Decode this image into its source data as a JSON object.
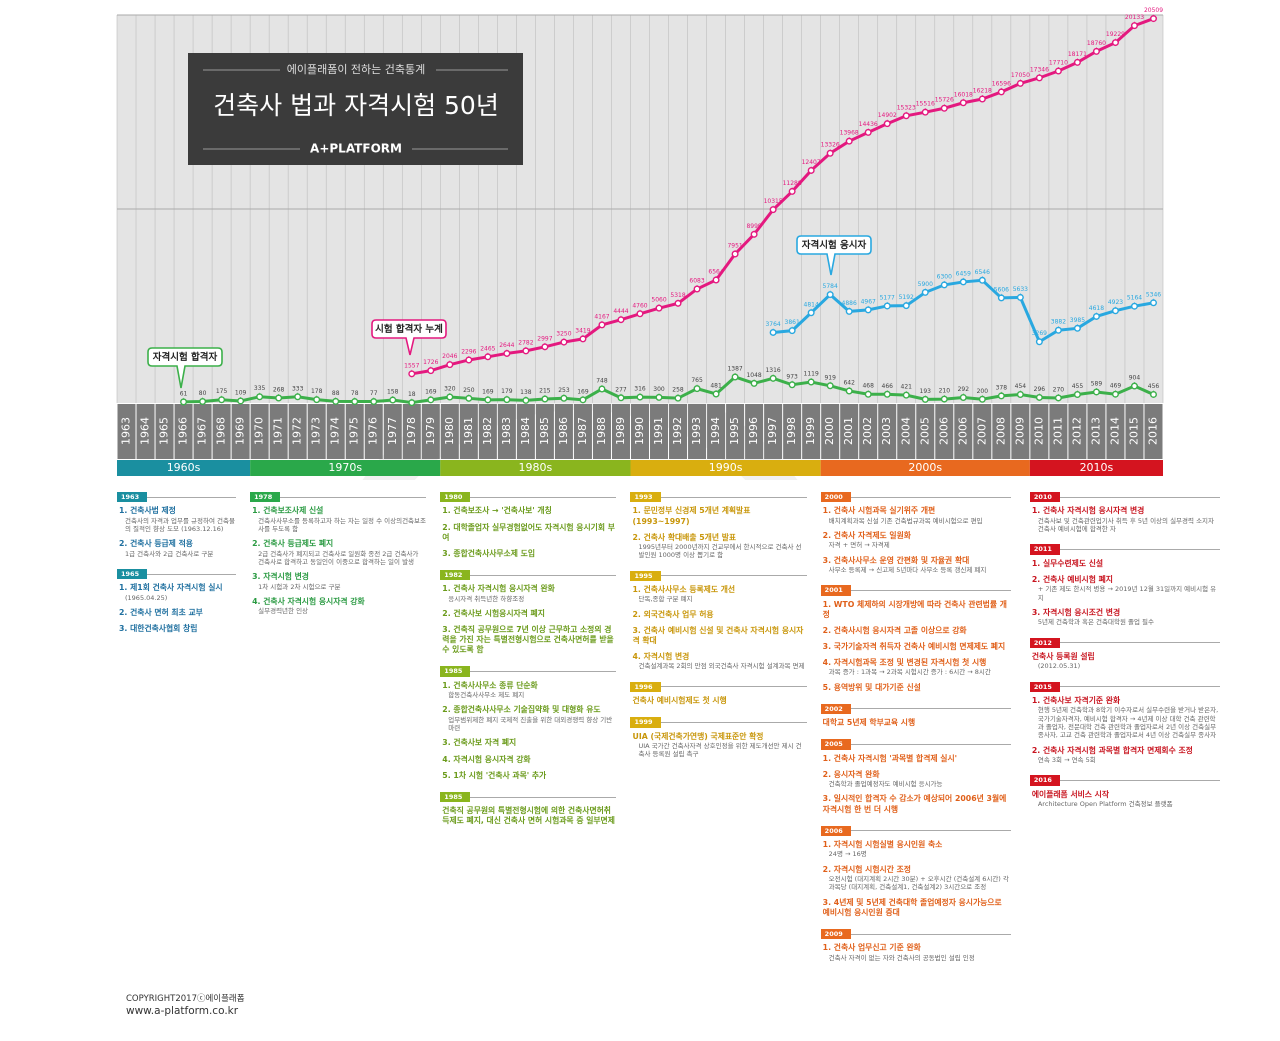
{
  "header": {
    "kicker": "에이플래폼이 전하는 건축통계",
    "title": "건축사 법과 자격시험 50년",
    "brand": "A+PLATFORM"
  },
  "chart_data": {
    "type": "line",
    "categories": [
      "1963",
      "1964",
      "1965",
      "1966",
      "1967",
      "1968",
      "1969",
      "1970",
      "1971",
      "1972",
      "1973",
      "1974",
      "1975",
      "1976",
      "1977",
      "1978",
      "1979",
      "1980",
      "1981",
      "1982",
      "1983",
      "1984",
      "1985",
      "1986",
      "1987",
      "1988",
      "1989",
      "1990",
      "1991",
      "1992",
      "1993",
      "1994",
      "1995",
      "1996",
      "1997",
      "1998",
      "1999",
      "2000",
      "2001",
      "2002",
      "2003",
      "2004",
      "2005",
      "2006",
      "2006",
      "2007",
      "2008",
      "2009",
      "2010",
      "2011",
      "2012",
      "2013",
      "2014",
      "2015",
      "2016"
    ],
    "series": [
      {
        "name": "자격시험 합격자",
        "color": "#3cb04a",
        "values": [
          null,
          null,
          null,
          61,
          80,
          175,
          109,
          335,
          268,
          333,
          178,
          88,
          78,
          77,
          158,
          18,
          169,
          320,
          250,
          169,
          179,
          138,
          215,
          253,
          169,
          748,
          277,
          316,
          300,
          258,
          765,
          481,
          1387,
          1048,
          1316,
          973,
          1119,
          919,
          642,
          468,
          466,
          421,
          193,
          210,
          292,
          200,
          378,
          454,
          296,
          270,
          455,
          589,
          469,
          904,
          456
        ]
      },
      {
        "name": "시험 합격자 누계",
        "color": "#e4197f",
        "values": [
          null,
          null,
          null,
          null,
          null,
          null,
          null,
          null,
          null,
          null,
          null,
          null,
          null,
          null,
          null,
          1557,
          1726,
          2046,
          2296,
          2465,
          2644,
          2782,
          2997,
          3250,
          3419,
          4167,
          4444,
          4760,
          5060,
          5318,
          6083,
          6564,
          7951,
          8999,
          10315,
          11288,
          12407,
          13326,
          13968,
          14436,
          14902,
          15323,
          15516,
          15726,
          16018,
          16218,
          16596,
          17050,
          17346,
          17710,
          18171,
          18760,
          19229,
          20133,
          20509
        ]
      },
      {
        "name": "자격시험 응시자",
        "color": "#29a8e0",
        "values": [
          null,
          null,
          null,
          null,
          null,
          null,
          null,
          null,
          null,
          null,
          null,
          null,
          null,
          null,
          null,
          null,
          null,
          null,
          null,
          null,
          null,
          null,
          null,
          null,
          null,
          null,
          null,
          null,
          null,
          null,
          null,
          null,
          null,
          null,
          3764,
          3861,
          4814,
          5784,
          4886,
          4967,
          5177,
          5192,
          5900,
          6300,
          6459,
          6546,
          5606,
          5633,
          3269,
          3882,
          3985,
          4618,
          4923,
          5164,
          5346
        ]
      }
    ],
    "ylim": [
      0,
      20700
    ],
    "decades": [
      {
        "label": "1960s",
        "color": "#1a8fa0"
      },
      {
        "label": "1970s",
        "color": "#2aa84a"
      },
      {
        "label": "1980s",
        "color": "#8ab51e"
      },
      {
        "label": "1990s",
        "color": "#d9ae0f"
      },
      {
        "label": "2000s",
        "color": "#e8691f"
      },
      {
        "label": "2010s",
        "color": "#d4141f"
      }
    ]
  },
  "timeline": [
    [
      {
        "year": "1963",
        "items": [
          {
            "title": "1. 건축사법 제정",
            "note": "건축사의 자격과 업무를 규정하여 건축물의 질적인 향상 도모 (1963.12.16)"
          },
          {
            "title": "2. 건축사 등급제 적용",
            "note": "1급 건축사와 2급 건축사로 구분"
          }
        ]
      },
      {
        "year": "1965",
        "items": [
          {
            "title": "1. 제1회 건축사 자격시험 실시",
            "note": "(1965.04.25)"
          },
          {
            "title": "2. 건축사 면허 최초 교부"
          },
          {
            "title": "3. 대한건축사협회 창립"
          }
        ]
      }
    ],
    [
      {
        "year": "1978",
        "items": [
          {
            "title": "1. 건축보조사제 신설",
            "note": "건축사사무소를 등록하고자 하는 자는 일정 수 이상의건축보조사를 두도록 함"
          },
          {
            "title": "2. 건축사 등급제도 폐지",
            "note": "2급 건축사가 폐지되고 건축사로 일원화 종전 2급 건축사가 건축사로 합격하고 동일인이 이중으로 합격하는 일이 발생"
          },
          {
            "title": "3. 자격시험 변경",
            "note": "1차 시험과 2차 시험으로 구분"
          },
          {
            "title": "4. 건축사 자격시험 응시자격 강화",
            "note": "실무경력년한 인상"
          }
        ]
      }
    ],
    [
      {
        "year": "1980",
        "items": [
          {
            "title": "1. 건축보조사 → '건축사보' 개칭"
          },
          {
            "title": "2. 대학졸업자 실무경험없어도 자격시험 응시기회 부여"
          },
          {
            "title": "3. 종합건축사사무소제 도입"
          }
        ]
      },
      {
        "year": "1982",
        "items": [
          {
            "title": "1. 건축사 자격시험 응시자격 완화",
            "note": "응시자격 취득년한 하향조정"
          },
          {
            "title": "2. 건축사보 시험응시자격 폐지"
          },
          {
            "title": "3. 건축직 공무원으로 7년 이상 근무하고 소정의 경력을 가진 자는 특별전형시험으로 건축사면허를 받을 수 있도록 함"
          }
        ]
      },
      {
        "year": "1985",
        "items": [
          {
            "title": "1. 건축사사무소 종류 단순화",
            "note": "합동건축사사무소 제도 폐지"
          },
          {
            "title": "2. 종합건축사사무소 기술집약화 및 대형화 유도",
            "note": "업무범위제한 폐지 국제적 진출을 위한 대외경쟁력 향상 기반 마련"
          },
          {
            "title": "3. 건축사보 자격 폐지"
          },
          {
            "title": "4. 자격시험 응시자격 강화"
          },
          {
            "title": "5. 1차 시험 '건축사 과목' 추가"
          }
        ]
      },
      {
        "year": "1985",
        "items": [
          {
            "title": "건축직 공무원의 특별전형시험에 의한 건축사면허취득제도 폐지, 대신 건축사 면허 시험과목 중 일부면제"
          }
        ]
      }
    ],
    [
      {
        "year": "1993",
        "items": [
          {
            "title": "1. 문민정부 신경제 5개년 계획발표 (1993~1997)"
          },
          {
            "title": "2. 건축사 확대배출 5개년 발표",
            "note": "1995년부터 2000년까지 건교부에서 한시적으로 건축사 선발인원 1000명 이상 뽑기로 함"
          }
        ]
      },
      {
        "year": "1995",
        "items": [
          {
            "title": "1. 건축사사무소 등록제도 개선",
            "note": "단독,종합 구분 폐지"
          },
          {
            "title": "2. 외국건축사 업무 허용"
          },
          {
            "title": "3. 건축사 예비시험 신설 및 건축사 자격시험 응시자격 확대"
          },
          {
            "title": "4. 자격시험 변경",
            "note": "건축설계과목 2회의 만점 외국건축사 자격시험 설계과목 면제"
          }
        ]
      },
      {
        "year": "1996",
        "items": [
          {
            "title": "건축사 예비시험제도 첫 시행"
          }
        ]
      },
      {
        "year": "1999",
        "items": [
          {
            "title": "UIA (국제건축가연맹) 국제표준안 확정",
            "note": "UIA 국가간 건축사자격 상호인정을 위한 제도개선안 제시 건축사 등록원 설립 촉구"
          }
        ]
      }
    ],
    [
      {
        "year": "2000",
        "items": [
          {
            "title": "1. 건축사 시험과목 실기위주 개편",
            "note": "배치계획과목 신설 기존 건축법규과목 예비시험으로 편입"
          },
          {
            "title": "2. 건축사 자격제도 일원화",
            "note": "자격 + 면허 → 자격제"
          },
          {
            "title": "3. 건축사사무소 운영 간편화 및 자율권 확대",
            "note": "사무소 등록제 → 신고제 5년마다 사무소 등록 갱신제 폐지"
          }
        ]
      },
      {
        "year": "2001",
        "items": [
          {
            "title": "1. WTO 체제하의 시장개방에 따라 건축사 관련법률 개정"
          },
          {
            "title": "2. 건축사시험 응시자격 고졸 이상으로 강화"
          },
          {
            "title": "3. 국가기술자격 취득자 건축사 예비시험 면제제도 폐지"
          },
          {
            "title": "4. 자격시험과목 조정 및 변경된 자격시험 첫 시행",
            "note": "과목 증가 : 1과목 → 2과목 시험시간 증가 : 6시간 → 8시간"
          },
          {
            "title": "5. 용역방위 및 대가기준 신설"
          }
        ]
      },
      {
        "year": "2002",
        "items": [
          {
            "title": "대학교 5년제 학부교육 시행"
          }
        ]
      },
      {
        "year": "2005",
        "items": [
          {
            "title": "1. 건축사 자격시험 '과목별 합격제 실시'"
          },
          {
            "title": "2. 응시자격 완화",
            "note": "건축학과 졸업예정자도 예비시험 응시가능"
          },
          {
            "title": "3. 일시적인 합격자 수 감소가 예상되어 2006년 3월에 자격시험 한 번 더 시행"
          }
        ]
      },
      {
        "year": "2006",
        "items": [
          {
            "title": "1. 자격시험 시험실별 응시인원 축소",
            "note": "24명 → 16명"
          },
          {
            "title": "2. 자격시험 시험시간 조정",
            "note": "오전시험 (대지계획 2시간 30분) + 오후시간 (건축설계 6시간) 각 과목당 (대지계획, 건축설계1, 건축설계2) 3시간으로 조정"
          },
          {
            "title": "3. 4년제 및 5년제 건축대학 졸업예정자 응시가능으로 예비시험 응시인원 증대"
          }
        ]
      },
      {
        "year": "2009",
        "items": [
          {
            "title": "1. 건축사 업무신고 기준 완화",
            "note": "건축사 자격이 없는 자와 건축사의 공동법인 설립 인정"
          }
        ]
      }
    ],
    [
      {
        "year": "2010",
        "items": [
          {
            "title": "1. 건축사 자격시험 응시자격 변경",
            "note": "건축사보 및 건축관련업기사 취득 후 5년 이상의 실무경력 소지자 건축사 예비시험에 합격한 자"
          }
        ]
      },
      {
        "year": "2011",
        "items": [
          {
            "title": "1. 실무수련제도 신설"
          },
          {
            "title": "2. 건축사 예비시험 폐지",
            "note": "+ 기존 제도 한시적 병용 → 2019년 12월 31일까지 예비시험 유지"
          },
          {
            "title": "3. 자격시험 응시조건 변경",
            "note": "5년제 건축학과 혹은 건축대학원 졸업 필수"
          }
        ]
      },
      {
        "year": "2012",
        "items": [
          {
            "title": "건축사 등록원 설립",
            "note": "(2012.05.31)"
          }
        ]
      },
      {
        "year": "2015",
        "items": [
          {
            "title": "1. 건축사보 자격기준 완화",
            "note": "현행 5년제 건축학과 8학기 이수자로서 실무수련을 받거나 받은자, 국가기술자격자, 예비시험 합격자 → 4년제 이상 대학 건축 관련학과 졸업자, 전문대학 건축 관련학과 졸업자로서 2년 이상 건축실무 종사자, 고교 건축 관련학과 졸업자로서 4년 이상 건축실무 종사자"
          },
          {
            "title": "2. 건축사 자격시험 과목별 합격자 면제회수 조정",
            "note": "연속 3회 → 연속 5회"
          }
        ]
      },
      {
        "year": "2016",
        "items": [
          {
            "title": "에이플래폼 서비스 시작",
            "note": "Architecture Open Platform 건축정보 플랫폼"
          }
        ]
      }
    ]
  ],
  "footer": {
    "copyright": "COPYRIGHT2017ⓒ에이플래폼",
    "url": "www.a-platform.co.kr"
  }
}
